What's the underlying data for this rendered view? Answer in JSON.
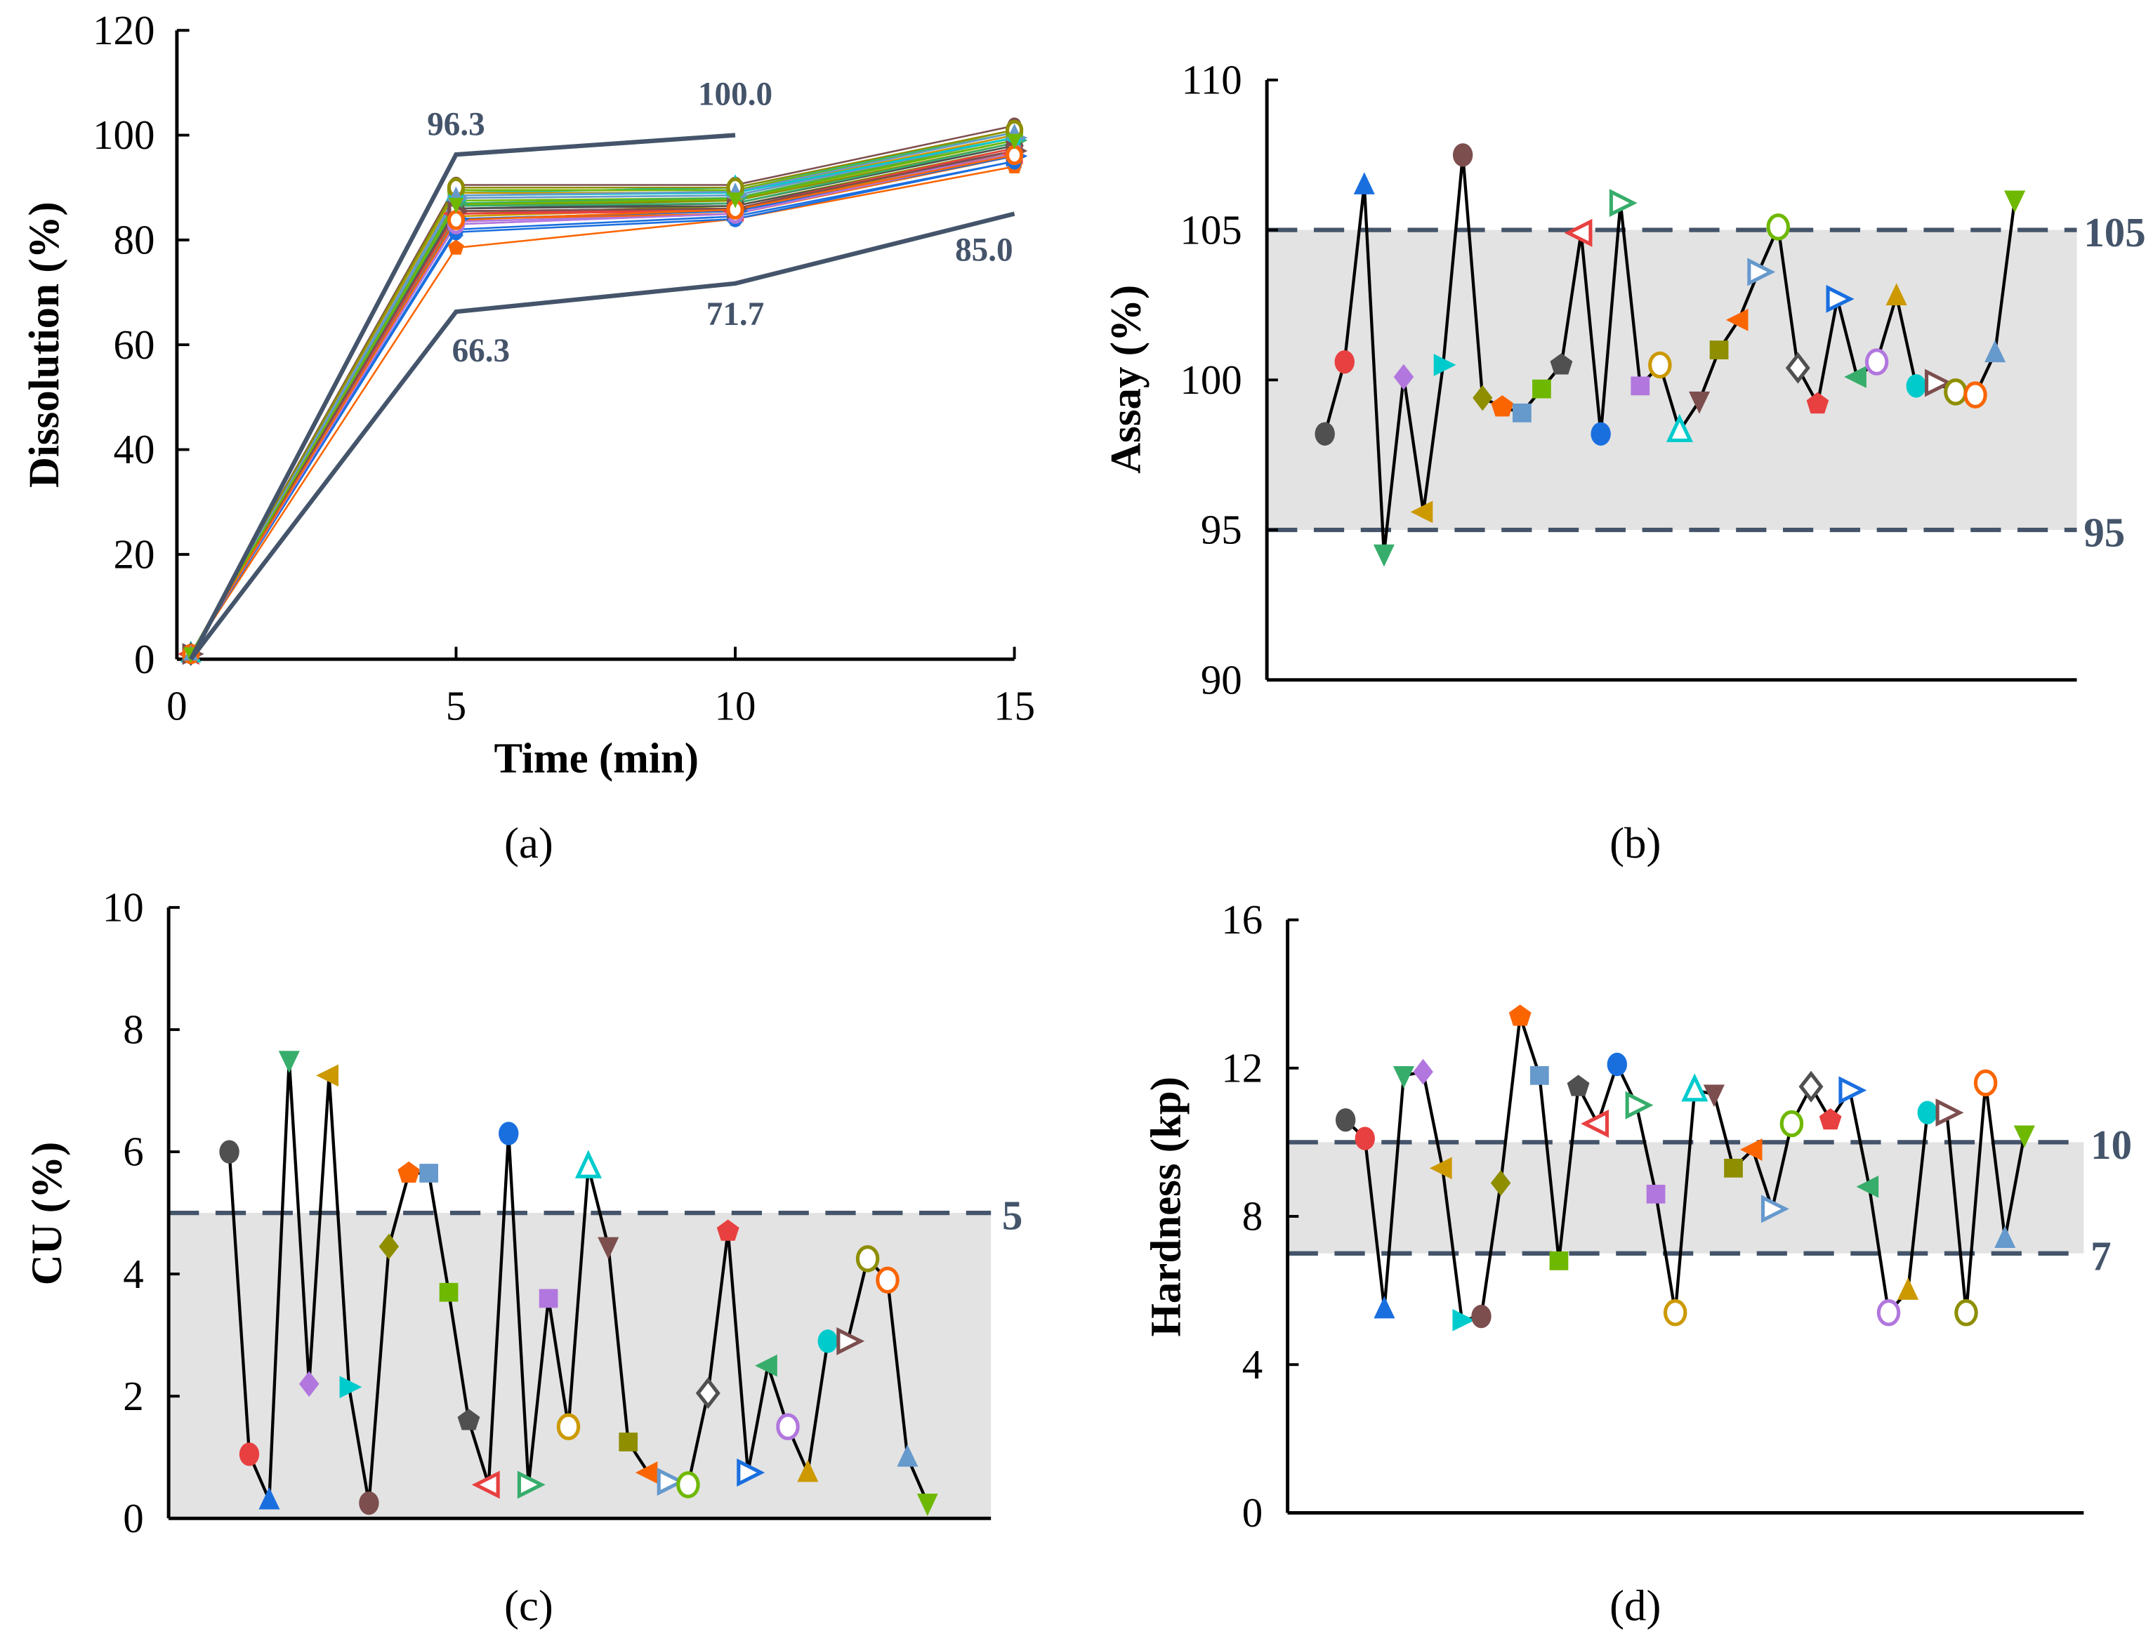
{
  "markers": [
    {
      "shape": "circle",
      "color": "#505050",
      "filled": true
    },
    {
      "shape": "circle",
      "color": "#e84040",
      "filled": true
    },
    {
      "shape": "tri-up",
      "color": "#1a6fdf",
      "filled": true
    },
    {
      "shape": "tri-down",
      "color": "#37ad6b",
      "filled": true
    },
    {
      "shape": "diamond",
      "color": "#b177de",
      "filled": true
    },
    {
      "shape": "tri-left",
      "color": "#cc9900",
      "filled": true
    },
    {
      "shape": "tri-right",
      "color": "#00cbcc",
      "filled": true
    },
    {
      "shape": "circle",
      "color": "#7d4e4e",
      "filled": true
    },
    {
      "shape": "diamond",
      "color": "#8e8e00",
      "filled": true
    },
    {
      "shape": "pentagon",
      "color": "#fb6501",
      "filled": true
    },
    {
      "shape": "square",
      "color": "#6699cc",
      "filled": true
    },
    {
      "shape": "square",
      "color": "#6fb802",
      "filled": true
    },
    {
      "shape": "pentagon",
      "color": "#505050",
      "filled": true
    },
    {
      "shape": "tri-left",
      "color": "#e84040",
      "filled": false
    },
    {
      "shape": "circle",
      "color": "#1a6fdf",
      "filled": true
    },
    {
      "shape": "tri-right",
      "color": "#37ad6b",
      "filled": false
    },
    {
      "shape": "square",
      "color": "#b177de",
      "filled": true
    },
    {
      "shape": "circle",
      "color": "#cc9900",
      "filled": false
    },
    {
      "shape": "tri-up",
      "color": "#00cbcc",
      "filled": false
    },
    {
      "shape": "tri-down",
      "color": "#7d4e4e",
      "filled": true
    },
    {
      "shape": "square",
      "color": "#8e8e00",
      "filled": true
    },
    {
      "shape": "tri-left",
      "color": "#fb6501",
      "filled": true
    },
    {
      "shape": "tri-right",
      "color": "#6699cc",
      "filled": false
    },
    {
      "shape": "circle",
      "color": "#6fb802",
      "filled": false
    },
    {
      "shape": "diamond",
      "color": "#505050",
      "filled": false
    },
    {
      "shape": "pentagon",
      "color": "#e84040",
      "filled": true
    },
    {
      "shape": "tri-right",
      "color": "#1a6fdf",
      "filled": false
    },
    {
      "shape": "tri-left",
      "color": "#37ad6b",
      "filled": true
    },
    {
      "shape": "circle",
      "color": "#b177de",
      "filled": false
    },
    {
      "shape": "tri-up",
      "color": "#cc9900",
      "filled": true
    },
    {
      "shape": "circle",
      "color": "#00cbcc",
      "filled": true
    },
    {
      "shape": "tri-right",
      "color": "#7d4e4e",
      "filled": false
    },
    {
      "shape": "circle",
      "color": "#8e8e00",
      "filled": false
    },
    {
      "shape": "circle",
      "color": "#fb6501",
      "filled": false
    },
    {
      "shape": "tri-up",
      "color": "#6699cc",
      "filled": true
    },
    {
      "shape": "tri-down",
      "color": "#6fb802",
      "filled": true
    }
  ],
  "colors": {
    "limit": "#44546a",
    "band": "#e3e3e3",
    "connector": "#000000"
  },
  "chart_data": [
    {
      "panel": "a",
      "caption": "(a)",
      "type": "line",
      "xlabel": "Time (min)",
      "ylabel": "Dissolution (%)",
      "xlim": [
        0,
        15
      ],
      "ylim": [
        0,
        120
      ],
      "xticks": [
        0,
        5,
        10,
        15
      ],
      "yticks": [
        0,
        20,
        40,
        60,
        80,
        100,
        120
      ],
      "x": [
        0.25,
        5,
        10,
        15
      ],
      "series": [
        [
          1,
          85.5,
          86,
          96.5
        ],
        [
          1,
          84,
          85.5,
          96
        ],
        [
          1,
          82,
          84.5,
          95
        ],
        [
          1,
          86,
          87,
          98
        ],
        [
          1,
          83,
          85,
          97
        ],
        [
          1,
          84.5,
          86,
          96.5
        ],
        [
          1,
          87,
          88,
          99
        ],
        [
          1,
          90.5,
          90.5,
          101.8
        ],
        [
          1,
          85,
          86.5,
          97.5
        ],
        [
          1,
          78.5,
          84,
          94
        ],
        [
          1,
          88,
          88.5,
          100
        ],
        [
          1,
          87.5,
          88,
          99.5
        ],
        [
          1,
          86,
          86.5,
          97
        ],
        [
          1,
          85,
          85.5,
          96.5
        ],
        [
          1,
          81.5,
          84,
          95
        ],
        [
          1,
          87,
          88,
          99
        ],
        [
          1,
          83.5,
          85,
          97
        ],
        [
          1,
          89.5,
          89.5,
          101
        ],
        [
          1,
          89,
          90,
          100.5
        ],
        [
          1,
          85.5,
          86,
          97
        ],
        [
          1,
          86.5,
          87.5,
          98.5
        ],
        [
          1,
          84,
          85,
          96
        ],
        [
          1,
          88,
          88.5,
          99.5
        ],
        [
          1,
          89.5,
          89.5,
          100.5
        ],
        [
          1,
          86,
          87,
          98
        ],
        [
          1,
          85,
          86,
          97.5
        ],
        [
          1,
          84,
          85.5,
          96
        ],
        [
          1,
          86.5,
          87,
          98.5
        ],
        [
          1,
          83,
          85,
          96.5
        ],
        [
          1,
          89,
          89,
          100
        ],
        [
          1,
          88.5,
          89,
          99.5
        ],
        [
          1,
          85.5,
          86,
          97
        ],
        [
          1,
          90,
          90,
          101
        ],
        [
          1,
          83.8,
          85.8,
          96.2
        ],
        [
          1,
          88.5,
          89.2,
          100.5
        ],
        [
          1,
          86.8,
          87.8,
          99
        ]
      ],
      "limits": [
        {
          "name": "upper",
          "x": [
            0.25,
            5,
            10
          ],
          "y": [
            0,
            96.3,
            100.0
          ],
          "labels": [
            "96.3",
            "100.0"
          ]
        },
        {
          "name": "lower",
          "x": [
            0.25,
            5,
            10,
            15
          ],
          "y": [
            0,
            66.3,
            71.7,
            85.0
          ],
          "labels": [
            "66.3",
            "71.7",
            "85.0"
          ]
        }
      ]
    },
    {
      "panel": "b",
      "caption": "(b)",
      "type": "scatter",
      "ylabel": "Assay (%)",
      "ylim": [
        90,
        110
      ],
      "yticks": [
        90,
        95,
        100,
        105,
        110
      ],
      "band": [
        95,
        105
      ],
      "band_labels": [
        "95",
        "105"
      ],
      "values": [
        98.2,
        100.6,
        106.5,
        94.2,
        100.1,
        95.6,
        100.5,
        107.5,
        99.4,
        99.1,
        98.9,
        99.7,
        100.5,
        104.9,
        98.2,
        105.9,
        99.8,
        100.5,
        98.3,
        99.3,
        101.0,
        102.0,
        103.6,
        105.1,
        100.4,
        99.2,
        102.7,
        100.1,
        100.6,
        102.8,
        99.8,
        99.9,
        99.6,
        99.5,
        100.9,
        106.0
      ]
    },
    {
      "panel": "c",
      "caption": "(c)",
      "type": "scatter",
      "ylabel": "CU (%)",
      "ylim": [
        0,
        10
      ],
      "yticks": [
        0,
        2,
        4,
        6,
        8,
        10
      ],
      "band": [
        0,
        5
      ],
      "band_labels": [
        "5"
      ],
      "values": [
        6.0,
        1.05,
        0.3,
        7.5,
        2.2,
        7.25,
        2.15,
        0.25,
        4.45,
        5.65,
        5.65,
        3.7,
        1.6,
        0.55,
        6.3,
        0.55,
        3.6,
        1.5,
        5.75,
        4.45,
        1.25,
        0.75,
        0.6,
        0.55,
        2.05,
        4.7,
        0.75,
        2.5,
        1.5,
        0.75,
        2.9,
        2.9,
        4.25,
        3.9,
        1.0,
        0.25
      ]
    },
    {
      "panel": "d",
      "caption": "(d)",
      "type": "scatter",
      "ylabel": "Hardness (kp)",
      "ylim": [
        0,
        16
      ],
      "yticks": [
        0,
        4,
        8,
        12,
        16
      ],
      "band": [
        7,
        10
      ],
      "band_labels": [
        "7",
        "10"
      ],
      "values": [
        10.6,
        10.1,
        5.5,
        11.8,
        11.9,
        9.3,
        5.2,
        5.3,
        8.9,
        13.4,
        11.8,
        6.8,
        11.5,
        10.5,
        12.1,
        11.0,
        8.6,
        5.4,
        11.4,
        11.3,
        9.3,
        9.8,
        8.2,
        10.5,
        11.5,
        10.6,
        11.4,
        8.8,
        5.4,
        6.0,
        10.8,
        10.8,
        5.4,
        11.6,
        7.4,
        10.2
      ]
    }
  ]
}
